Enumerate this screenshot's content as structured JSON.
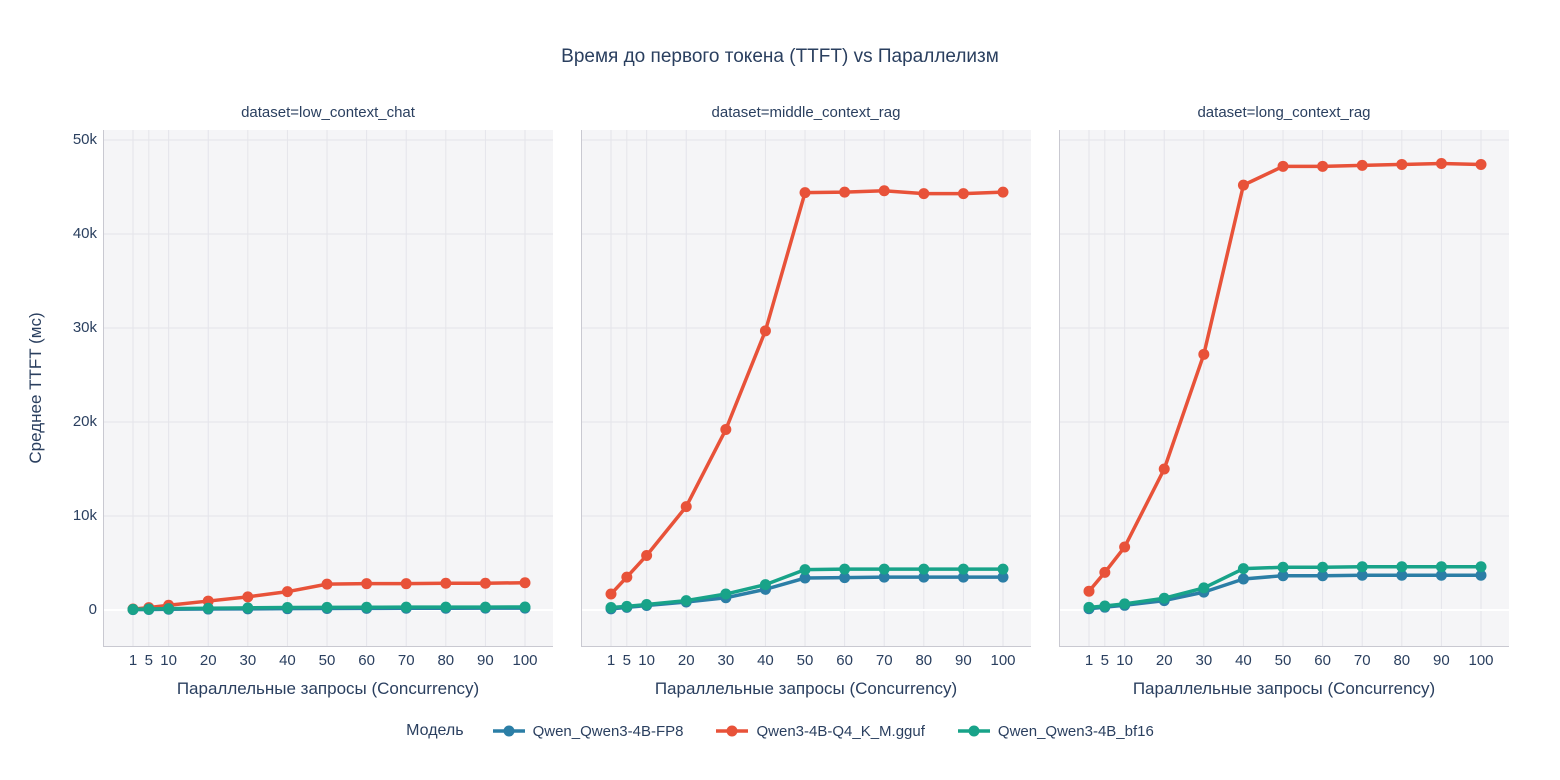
{
  "title": "Время до первого токена (TTFT) vs Параллелизм",
  "legend": {
    "title": "Модель"
  },
  "axes": {
    "x_title": "Параллельные запросы (Concurrency)",
    "y_title": "Среднее TTFT (мс)",
    "x_ticks": [
      1,
      5,
      10,
      20,
      30,
      40,
      50,
      60,
      70,
      80,
      90,
      100
    ],
    "y_ticks": [
      "0",
      "10k",
      "20k",
      "30k",
      "40k",
      "50k"
    ],
    "y_tick_values": [
      0,
      10000,
      20000,
      30000,
      40000,
      50000
    ]
  },
  "colors": {
    "text": "#2a3f5f",
    "plot_background": "#f5f5f7",
    "grid": "#e4e4ea",
    "zeroline": "#ffffff",
    "axis_line": "#c9c9d1",
    "series_blue": "#2b7ea6",
    "series_red": "#e85239",
    "series_green": "#18a389"
  },
  "chart_data": {
    "type": "line",
    "title": "Время до первого токена (TTFT) vs Параллелизм",
    "xlabel": "Параллельные запросы (Concurrency)",
    "ylabel": "Среднее TTFT (мс)",
    "x": [
      1,
      5,
      10,
      20,
      30,
      40,
      50,
      60,
      70,
      80,
      90,
      100
    ],
    "ylim": [
      0,
      50000
    ],
    "grid": true,
    "legend_position": "bottom",
    "legend_title": "Модель",
    "models": [
      {
        "name": "Qwen_Qwen3-4B-FP8",
        "color": "#2b7ea6"
      },
      {
        "name": "Qwen3-4B-Q4_K_M.gguf",
        "color": "#e85239"
      },
      {
        "name": "Qwen_Qwen3-4B_bf16",
        "color": "#18a389"
      }
    ],
    "facets": [
      {
        "label": "dataset=low_context_chat",
        "series": [
          {
            "model": "Qwen_Qwen3-4B-FP8",
            "ttft_ms": [
              40,
              55,
              75,
              100,
              120,
              140,
              160,
              175,
              185,
              190,
              195,
              200
            ]
          },
          {
            "model": "Qwen3-4B-Q4_K_M.gguf",
            "ttft_ms": [
              100,
              250,
              500,
              950,
              1400,
              1950,
              2750,
              2800,
              2800,
              2850,
              2850,
              2900
            ]
          },
          {
            "model": "Qwen_Qwen3-4B_bf16",
            "ttft_ms": [
              70,
              100,
              140,
              190,
              230,
              260,
              280,
              290,
              300,
              305,
              310,
              315
            ]
          }
        ]
      },
      {
        "label": "dataset=middle_context_rag",
        "series": [
          {
            "model": "Qwen_Qwen3-4B-FP8",
            "ttft_ms": [
              120,
              280,
              480,
              850,
              1300,
              2200,
              3400,
              3450,
              3500,
              3500,
              3500,
              3500
            ]
          },
          {
            "model": "Qwen3-4B-Q4_K_M.gguf",
            "ttft_ms": [
              1700,
              3500,
              5800,
              11000,
              19200,
              29700,
              44400,
              44450,
              44600,
              44300,
              44300,
              44450
            ]
          },
          {
            "model": "Qwen_Qwen3-4B_bf16",
            "ttft_ms": [
              260,
              380,
              580,
              1000,
              1700,
              2700,
              4300,
              4350,
              4350,
              4350,
              4350,
              4350
            ]
          }
        ]
      },
      {
        "label": "dataset=long_context_rag",
        "series": [
          {
            "model": "Qwen_Qwen3-4B-FP8",
            "ttft_ms": [
              130,
              300,
              500,
              1000,
              1900,
              3300,
              3650,
              3650,
              3700,
              3700,
              3700,
              3700
            ]
          },
          {
            "model": "Qwen3-4B-Q4_K_M.gguf",
            "ttft_ms": [
              2000,
              4000,
              6700,
              15000,
              27200,
              45200,
              47200,
              47200,
              47300,
              47400,
              47500,
              47400
            ]
          },
          {
            "model": "Qwen_Qwen3-4B_bf16",
            "ttft_ms": [
              280,
              420,
              650,
              1250,
              2350,
              4400,
              4550,
              4550,
              4600,
              4600,
              4600,
              4600
            ]
          }
        ]
      }
    ]
  }
}
